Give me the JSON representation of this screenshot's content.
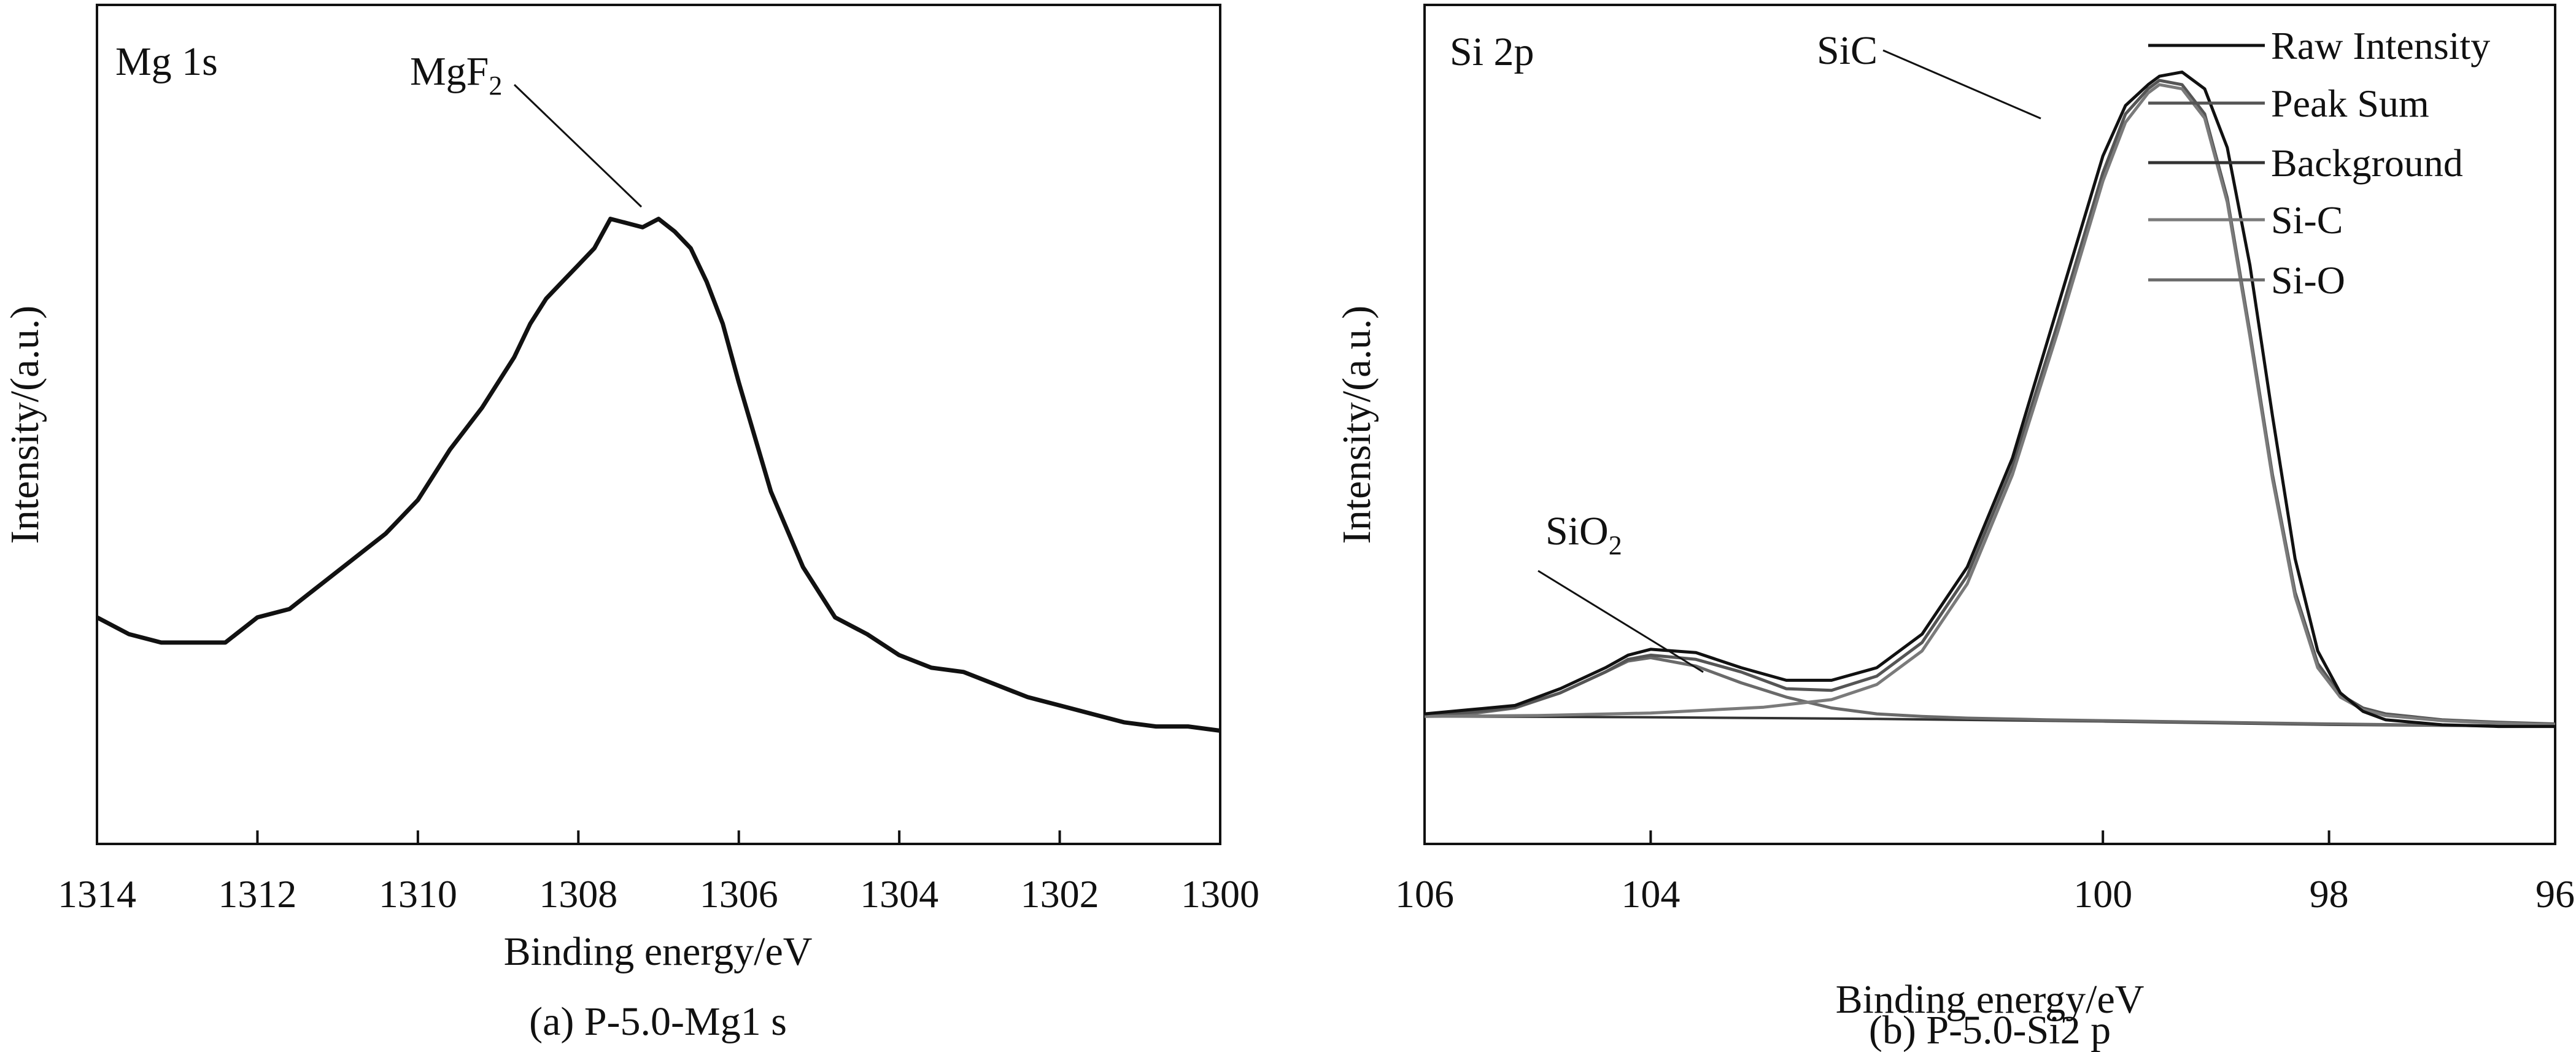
{
  "colors": {
    "raw": "#111111",
    "sum": "#555555",
    "background": "#333333",
    "sic": "#7a7a7a",
    "sio": "#6a6a6a",
    "frame": "#111111"
  },
  "chart_data": [
    {
      "type": "line",
      "panel_label": "Mg 1s",
      "caption": "(a) P-5.0-Mg1 s",
      "xlabel": "Binding energy/eV",
      "ylabel": "Intensity/(a.u.)",
      "xlim": [
        1314,
        1300
      ],
      "ylim": [
        0,
        1
      ],
      "xticks": [
        "1314",
        "1312",
        "1310",
        "1308",
        "1306",
        "1304",
        "1302",
        "1300"
      ],
      "annotations": [
        {
          "text": "MgF",
          "sub": "2",
          "x": 1307.2,
          "y": 0.68
        }
      ],
      "series": [
        {
          "name": "Mg 1s",
          "x": [
            1314.0,
            1313.6,
            1313.2,
            1312.8,
            1312.4,
            1312.0,
            1311.6,
            1311.2,
            1310.8,
            1310.4,
            1310.0,
            1309.6,
            1309.2,
            1308.8,
            1308.6,
            1308.4,
            1308.2,
            1308.0,
            1307.8,
            1307.6,
            1307.4,
            1307.2,
            1307.0,
            1306.8,
            1306.6,
            1306.4,
            1306.2,
            1306.0,
            1305.6,
            1305.2,
            1304.8,
            1304.4,
            1304.0,
            1303.6,
            1303.2,
            1302.8,
            1302.4,
            1302.0,
            1301.6,
            1301.2,
            1300.8,
            1300.4,
            1300.0
          ],
          "y": [
            0.27,
            0.25,
            0.24,
            0.24,
            0.24,
            0.27,
            0.28,
            0.31,
            0.34,
            0.37,
            0.41,
            0.47,
            0.52,
            0.58,
            0.62,
            0.65,
            0.67,
            0.69,
            0.71,
            0.745,
            0.74,
            0.735,
            0.745,
            0.73,
            0.71,
            0.67,
            0.62,
            0.55,
            0.42,
            0.33,
            0.27,
            0.25,
            0.225,
            0.21,
            0.205,
            0.19,
            0.175,
            0.165,
            0.155,
            0.145,
            0.14,
            0.14,
            0.135
          ]
        }
      ]
    },
    {
      "type": "line",
      "panel_label": "Si 2p",
      "caption": "(b) P-5.0-Si2 p",
      "xlabel": "Binding energy/eV",
      "ylabel": "Intensity/(a.u.)",
      "xlim": [
        106,
        96
      ],
      "ylim": [
        0,
        1
      ],
      "xticks": [
        "106",
        "104",
        "100",
        "98",
        "96"
      ],
      "legend": [
        "Raw Intensity",
        "Peak Sum",
        "Background",
        "Si-C",
        "Si-O"
      ],
      "annotations": [
        {
          "text": "SiC",
          "x": 99.5,
          "y": 0.92
        },
        {
          "text": "SiO",
          "sub": "2",
          "x": 103.8,
          "y": 0.22
        }
      ],
      "series": [
        {
          "name": "Raw Intensity",
          "x": [
            106,
            105.6,
            105.2,
            104.8,
            104.4,
            104.2,
            104.0,
            103.6,
            103.2,
            102.8,
            102.4,
            102.0,
            101.6,
            101.2,
            100.8,
            100.4,
            100.0,
            99.8,
            99.6,
            99.5,
            99.3,
            99.1,
            98.9,
            98.7,
            98.5,
            98.3,
            98.1,
            97.9,
            97.7,
            97.5,
            97.0,
            96.5,
            96.0
          ],
          "y": [
            0.155,
            0.16,
            0.165,
            0.185,
            0.21,
            0.225,
            0.232,
            0.228,
            0.21,
            0.195,
            0.195,
            0.21,
            0.25,
            0.33,
            0.46,
            0.64,
            0.82,
            0.88,
            0.905,
            0.915,
            0.92,
            0.9,
            0.83,
            0.69,
            0.51,
            0.34,
            0.23,
            0.18,
            0.158,
            0.148,
            0.142,
            0.14,
            0.14
          ]
        },
        {
          "name": "Peak Sum",
          "x": [
            106,
            105.6,
            105.2,
            104.8,
            104.4,
            104.2,
            104.0,
            103.6,
            103.2,
            102.8,
            102.4,
            102.0,
            101.6,
            101.2,
            100.8,
            100.4,
            100.0,
            99.8,
            99.6,
            99.5,
            99.3,
            99.1,
            98.9,
            98.7,
            98.5,
            98.3,
            98.1,
            97.9,
            97.7,
            97.5,
            97.0,
            96.5,
            96.0
          ],
          "y": [
            0.153,
            0.157,
            0.163,
            0.18,
            0.205,
            0.22,
            0.225,
            0.22,
            0.205,
            0.185,
            0.183,
            0.2,
            0.24,
            0.32,
            0.45,
            0.62,
            0.8,
            0.87,
            0.9,
            0.91,
            0.905,
            0.87,
            0.77,
            0.61,
            0.44,
            0.3,
            0.215,
            0.178,
            0.162,
            0.155,
            0.148,
            0.145,
            0.143
          ]
        },
        {
          "name": "Background",
          "x": [
            106,
            104,
            102,
            100,
            98,
            96
          ],
          "y": [
            0.152,
            0.151,
            0.149,
            0.146,
            0.142,
            0.14
          ]
        },
        {
          "name": "Si-C",
          "x": [
            106,
            105.0,
            104.0,
            103.0,
            102.4,
            102.0,
            101.6,
            101.2,
            100.8,
            100.4,
            100.0,
            99.8,
            99.6,
            99.5,
            99.3,
            99.1,
            98.9,
            98.7,
            98.5,
            98.3,
            98.1,
            97.9,
            97.7,
            97.5,
            97.0,
            96.5,
            96.0
          ],
          "y": [
            0.152,
            0.153,
            0.156,
            0.163,
            0.172,
            0.19,
            0.23,
            0.31,
            0.44,
            0.61,
            0.79,
            0.86,
            0.895,
            0.905,
            0.9,
            0.865,
            0.765,
            0.605,
            0.435,
            0.295,
            0.21,
            0.175,
            0.16,
            0.153,
            0.147,
            0.144,
            0.142
          ]
        },
        {
          "name": "Si-O",
          "x": [
            106,
            105.6,
            105.2,
            104.8,
            104.4,
            104.2,
            104.0,
            103.6,
            103.2,
            102.8,
            102.4,
            102.0,
            101.6,
            101.2,
            100.5,
            100.0,
            98.0,
            96.0
          ],
          "y": [
            0.152,
            0.155,
            0.162,
            0.18,
            0.205,
            0.218,
            0.222,
            0.212,
            0.192,
            0.175,
            0.162,
            0.155,
            0.152,
            0.15,
            0.148,
            0.147,
            0.143,
            0.14
          ]
        }
      ]
    }
  ]
}
